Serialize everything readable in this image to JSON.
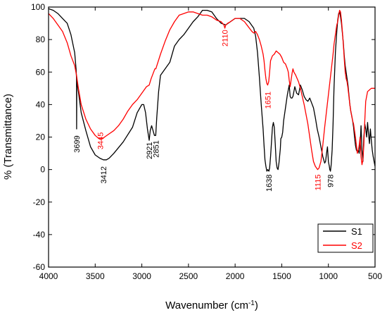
{
  "chart_data": {
    "type": "line",
    "xlabel": "Wavenumber (cm",
    "xlabel_sup": "-1",
    "xlabel_end": ")",
    "ylabel": "% (Transmittance)",
    "xlim": [
      4000,
      500
    ],
    "ylim": [
      -60,
      100
    ],
    "x_ticks": [
      4000,
      3500,
      3000,
      2500,
      2000,
      1500,
      1000,
      500
    ],
    "x_tick_labels": [
      "4000",
      "3500",
      "3000",
      "2500",
      "2000",
      "1500",
      "1000",
      "500"
    ],
    "y_ticks": [
      100,
      80,
      60,
      40,
      20,
      0,
      -20,
      -40,
      -60
    ],
    "y_tick_labels": [
      "100",
      "80",
      "60",
      "40",
      "20",
      "0",
      "-20",
      "-40",
      "-60"
    ],
    "grid": false,
    "legend_position": "bottom-right",
    "series": [
      {
        "name": "S1",
        "color": "#000000",
        "points": [
          [
            4000,
            99
          ],
          [
            3950,
            98
          ],
          [
            3900,
            96
          ],
          [
            3850,
            93
          ],
          [
            3800,
            90
          ],
          [
            3760,
            83
          ],
          [
            3720,
            72
          ],
          [
            3705,
            62
          ],
          [
            3700,
            56
          ],
          [
            3699,
            25
          ],
          [
            3697,
            55
          ],
          [
            3680,
            48
          ],
          [
            3650,
            35
          ],
          [
            3600,
            24
          ],
          [
            3550,
            14
          ],
          [
            3500,
            9
          ],
          [
            3450,
            7
          ],
          [
            3412,
            6
          ],
          [
            3380,
            6
          ],
          [
            3350,
            7
          ],
          [
            3300,
            10
          ],
          [
            3200,
            17
          ],
          [
            3100,
            26
          ],
          [
            3050,
            35
          ],
          [
            3000,
            40
          ],
          [
            2980,
            40
          ],
          [
            2960,
            35
          ],
          [
            2940,
            25
          ],
          [
            2921,
            18
          ],
          [
            2910,
            24
          ],
          [
            2895,
            27
          ],
          [
            2880,
            24
          ],
          [
            2865,
            21
          ],
          [
            2851,
            21
          ],
          [
            2840,
            32
          ],
          [
            2820,
            48
          ],
          [
            2800,
            58
          ],
          [
            2750,
            62
          ],
          [
            2700,
            66
          ],
          [
            2650,
            76
          ],
          [
            2600,
            80
          ],
          [
            2550,
            83
          ],
          [
            2500,
            87
          ],
          [
            2450,
            91
          ],
          [
            2400,
            94
          ],
          [
            2350,
            98
          ],
          [
            2300,
            98
          ],
          [
            2250,
            97
          ],
          [
            2200,
            93
          ],
          [
            2150,
            90
          ],
          [
            2100,
            89
          ],
          [
            2050,
            91
          ],
          [
            2000,
            93
          ],
          [
            1950,
            93
          ],
          [
            1900,
            93
          ],
          [
            1850,
            91
          ],
          [
            1800,
            87
          ],
          [
            1780,
            82
          ],
          [
            1760,
            72
          ],
          [
            1740,
            57
          ],
          [
            1720,
            40
          ],
          [
            1700,
            25
          ],
          [
            1690,
            15
          ],
          [
            1680,
            6
          ],
          [
            1670,
            2
          ],
          [
            1660,
            -1
          ],
          [
            1650,
            0
          ],
          [
            1638,
            -1
          ],
          [
            1630,
            1
          ],
          [
            1620,
            8
          ],
          [
            1610,
            17
          ],
          [
            1600,
            26
          ],
          [
            1590,
            29
          ],
          [
            1580,
            26
          ],
          [
            1570,
            16
          ],
          [
            1560,
            5
          ],
          [
            1550,
            1
          ],
          [
            1540,
            0
          ],
          [
            1530,
            4
          ],
          [
            1520,
            10
          ],
          [
            1515,
            13
          ],
          [
            1510,
            19
          ],
          [
            1500,
            20
          ],
          [
            1490,
            23
          ],
          [
            1480,
            30
          ],
          [
            1460,
            38
          ],
          [
            1440,
            46
          ],
          [
            1420,
            52
          ],
          [
            1410,
            45
          ],
          [
            1400,
            44
          ],
          [
            1390,
            44
          ],
          [
            1380,
            45
          ],
          [
            1360,
            51
          ],
          [
            1340,
            47
          ],
          [
            1320,
            46
          ],
          [
            1300,
            52
          ],
          [
            1280,
            49
          ],
          [
            1260,
            45
          ],
          [
            1240,
            43
          ],
          [
            1220,
            42
          ],
          [
            1200,
            44
          ],
          [
            1180,
            41
          ],
          [
            1160,
            38
          ],
          [
            1140,
            32
          ],
          [
            1120,
            25
          ],
          [
            1100,
            20
          ],
          [
            1080,
            14
          ],
          [
            1060,
            8
          ],
          [
            1040,
            4
          ],
          [
            1030,
            5
          ],
          [
            1020,
            10
          ],
          [
            1010,
            14
          ],
          [
            1000,
            5
          ],
          [
            990,
            2
          ],
          [
            985,
            0
          ],
          [
            978,
            -1
          ],
          [
            970,
            3
          ],
          [
            960,
            12
          ],
          [
            950,
            28
          ],
          [
            940,
            50
          ],
          [
            925,
            72
          ],
          [
            910,
            85
          ],
          [
            900,
            92
          ],
          [
            890,
            96
          ],
          [
            880,
            97
          ],
          [
            870,
            94
          ],
          [
            860,
            90
          ],
          [
            850,
            84
          ],
          [
            840,
            78
          ],
          [
            830,
            70
          ],
          [
            820,
            64
          ],
          [
            810,
            60
          ],
          [
            800,
            56
          ],
          [
            790,
            52
          ],
          [
            780,
            46
          ],
          [
            770,
            40
          ],
          [
            760,
            36
          ],
          [
            750,
            33
          ],
          [
            740,
            30
          ],
          [
            730,
            26
          ],
          [
            720,
            20
          ],
          [
            710,
            15
          ],
          [
            700,
            12
          ],
          [
            690,
            11
          ],
          [
            680,
            12
          ],
          [
            670,
            10
          ],
          [
            660,
            15
          ],
          [
            650,
            27
          ],
          [
            640,
            12
          ],
          [
            630,
            5
          ],
          [
            620,
            20
          ],
          [
            610,
            28
          ],
          [
            600,
            25
          ],
          [
            590,
            20
          ],
          [
            580,
            29
          ],
          [
            570,
            22
          ],
          [
            560,
            16
          ],
          [
            550,
            25
          ],
          [
            540,
            18
          ],
          [
            530,
            12
          ],
          [
            520,
            8
          ],
          [
            510,
            5
          ],
          [
            500,
            2
          ]
        ]
      },
      {
        "name": "S2",
        "color": "#ff0000",
        "points": [
          [
            4000,
            96
          ],
          [
            3950,
            93
          ],
          [
            3900,
            89
          ],
          [
            3850,
            85
          ],
          [
            3800,
            78
          ],
          [
            3760,
            70
          ],
          [
            3720,
            64
          ],
          [
            3700,
            58
          ],
          [
            3680,
            50
          ],
          [
            3650,
            40
          ],
          [
            3600,
            31
          ],
          [
            3550,
            25
          ],
          [
            3500,
            21
          ],
          [
            3460,
            19
          ],
          [
            3445,
            19
          ],
          [
            3420,
            19
          ],
          [
            3400,
            20
          ],
          [
            3350,
            22
          ],
          [
            3300,
            24
          ],
          [
            3250,
            27
          ],
          [
            3200,
            31
          ],
          [
            3150,
            36
          ],
          [
            3100,
            40
          ],
          [
            3050,
            43
          ],
          [
            3000,
            47
          ],
          [
            2950,
            51
          ],
          [
            2921,
            52
          ],
          [
            2900,
            56
          ],
          [
            2880,
            59
          ],
          [
            2860,
            62
          ],
          [
            2850,
            62
          ],
          [
            2800,
            71
          ],
          [
            2750,
            79
          ],
          [
            2700,
            86
          ],
          [
            2650,
            91
          ],
          [
            2600,
            95
          ],
          [
            2550,
            96
          ],
          [
            2500,
            97
          ],
          [
            2450,
            97
          ],
          [
            2400,
            96
          ],
          [
            2350,
            95
          ],
          [
            2300,
            95
          ],
          [
            2250,
            94
          ],
          [
            2200,
            92
          ],
          [
            2150,
            91
          ],
          [
            2120,
            89
          ],
          [
            2110,
            87
          ],
          [
            2100,
            89
          ],
          [
            2080,
            90
          ],
          [
            2050,
            91
          ],
          [
            2000,
            93
          ],
          [
            1950,
            93
          ],
          [
            1900,
            91
          ],
          [
            1860,
            88
          ],
          [
            1820,
            85
          ],
          [
            1800,
            84
          ],
          [
            1780,
            85
          ],
          [
            1760,
            83
          ],
          [
            1740,
            80
          ],
          [
            1720,
            76
          ],
          [
            1700,
            71
          ],
          [
            1690,
            67
          ],
          [
            1680,
            61
          ],
          [
            1670,
            56
          ],
          [
            1660,
            53
          ],
          [
            1651,
            52
          ],
          [
            1640,
            54
          ],
          [
            1630,
            60
          ],
          [
            1620,
            67
          ],
          [
            1600,
            70
          ],
          [
            1580,
            71
          ],
          [
            1560,
            73
          ],
          [
            1540,
            72
          ],
          [
            1520,
            71
          ],
          [
            1500,
            69
          ],
          [
            1480,
            66
          ],
          [
            1460,
            65
          ],
          [
            1440,
            62
          ],
          [
            1430,
            60
          ],
          [
            1420,
            55
          ],
          [
            1410,
            51
          ],
          [
            1400,
            55
          ],
          [
            1390,
            59
          ],
          [
            1380,
            62
          ],
          [
            1370,
            60
          ],
          [
            1350,
            58
          ],
          [
            1320,
            54
          ],
          [
            1300,
            50
          ],
          [
            1280,
            45
          ],
          [
            1260,
            40
          ],
          [
            1240,
            34
          ],
          [
            1220,
            28
          ],
          [
            1200,
            20
          ],
          [
            1180,
            12
          ],
          [
            1160,
            5
          ],
          [
            1140,
            2
          ],
          [
            1115,
            0
          ],
          [
            1100,
            1
          ],
          [
            1080,
            5
          ],
          [
            1060,
            15
          ],
          [
            1040,
            26
          ],
          [
            1020,
            36
          ],
          [
            1000,
            46
          ],
          [
            980,
            56
          ],
          [
            960,
            66
          ],
          [
            950,
            71
          ],
          [
            940,
            77
          ],
          [
            930,
            81
          ],
          [
            920,
            85
          ],
          [
            910,
            89
          ],
          [
            900,
            91
          ],
          [
            890,
            95
          ],
          [
            880,
            98
          ],
          [
            870,
            97
          ],
          [
            860,
            92
          ],
          [
            850,
            85
          ],
          [
            840,
            77
          ],
          [
            830,
            68
          ],
          [
            820,
            60
          ],
          [
            810,
            56
          ],
          [
            800,
            54
          ],
          [
            790,
            50
          ],
          [
            780,
            45
          ],
          [
            770,
            40
          ],
          [
            760,
            36
          ],
          [
            750,
            33
          ],
          [
            740,
            30
          ],
          [
            730,
            28
          ],
          [
            720,
            24
          ],
          [
            710,
            20
          ],
          [
            700,
            15
          ],
          [
            690,
            10
          ],
          [
            680,
            12
          ],
          [
            670,
            15
          ],
          [
            660,
            20
          ],
          [
            650,
            8
          ],
          [
            640,
            3
          ],
          [
            630,
            6
          ],
          [
            620,
            15
          ],
          [
            610,
            30
          ],
          [
            600,
            42
          ],
          [
            580,
            48
          ],
          [
            560,
            49
          ],
          [
            540,
            50
          ],
          [
            520,
            50
          ],
          [
            500,
            50
          ]
        ]
      }
    ],
    "annotations": [
      {
        "text": "3699",
        "x": 3699,
        "y": 21,
        "color": "#000000"
      },
      {
        "text": "3445",
        "x": 3445,
        "y": 23,
        "color": "#ff0000"
      },
      {
        "text": "3412",
        "x": 3412,
        "y": 2,
        "color": "#000000"
      },
      {
        "text": "2921",
        "x": 2921,
        "y": 17,
        "color": "#000000"
      },
      {
        "text": "2851",
        "x": 2851,
        "y": 18,
        "color": "#000000"
      },
      {
        "text": "2110",
        "x": 2110,
        "y": 86,
        "color": "#ff0000"
      },
      {
        "text": "1651",
        "x": 1651,
        "y": 48,
        "color": "#ff0000"
      },
      {
        "text": "1638",
        "x": 1638,
        "y": -3,
        "color": "#000000"
      },
      {
        "text": "1115",
        "x": 1115,
        "y": -3,
        "color": "#ff0000"
      },
      {
        "text": "978",
        "x": 978,
        "y": -3,
        "color": "#000000"
      }
    ]
  }
}
